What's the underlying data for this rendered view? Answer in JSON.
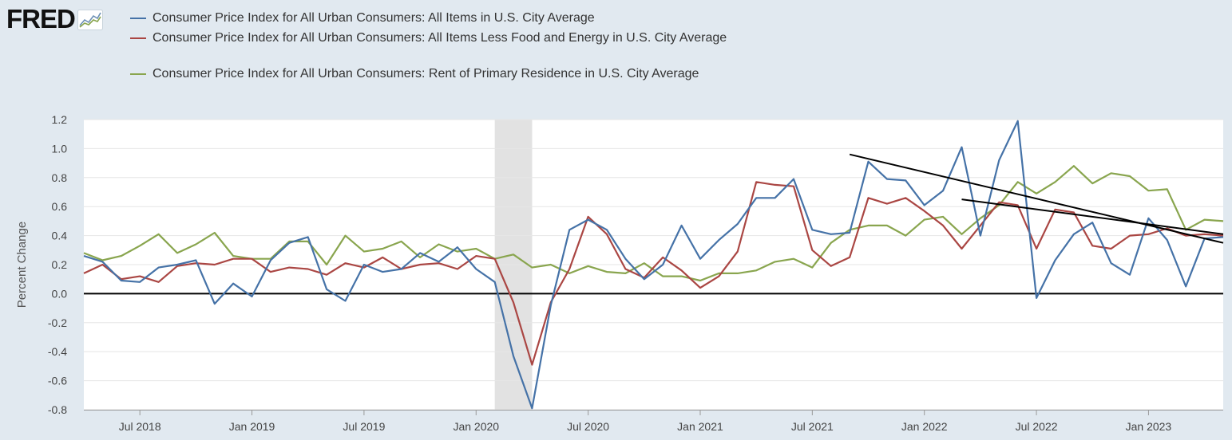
{
  "logo": {
    "text": "FRED",
    "icon": "fred-line-graph-icon"
  },
  "colors": {
    "cpi_all": "#4572a7",
    "core": "#aa4643",
    "rent": "#89a54e",
    "recession": "#e2e2e2",
    "trend": "#000000"
  },
  "chart_data": {
    "type": "line",
    "title": "",
    "ylabel": "Percent Change",
    "xlabel": "",
    "ylim": [
      -0.8,
      1.2
    ],
    "yticks": [
      1.2,
      1.0,
      0.8,
      0.6,
      0.4,
      0.2,
      0.0,
      -0.2,
      -0.4,
      -0.6,
      -0.8
    ],
    "ytick_labels": [
      "1.2",
      "1.0",
      "0.8",
      "0.6",
      "0.4",
      "0.2",
      "0.0",
      "-0.2",
      "-0.4",
      "-0.6",
      "-0.8"
    ],
    "x_start": "2018-04",
    "x_end": "2023-05",
    "xticks": [
      {
        "date": "2018-07",
        "label": "Jul 2018"
      },
      {
        "date": "2019-01",
        "label": "Jan 2019"
      },
      {
        "date": "2019-07",
        "label": "Jul 2019"
      },
      {
        "date": "2020-01",
        "label": "Jan 2020"
      },
      {
        "date": "2020-07",
        "label": "Jul 2020"
      },
      {
        "date": "2021-01",
        "label": "Jan 2021"
      },
      {
        "date": "2021-07",
        "label": "Jul 2021"
      },
      {
        "date": "2022-01",
        "label": "Jan 2022"
      },
      {
        "date": "2022-07",
        "label": "Jul 2022"
      },
      {
        "date": "2023-01",
        "label": "Jan 2023"
      }
    ],
    "recession": {
      "start": "2020-02",
      "end": "2020-04"
    },
    "grid": true,
    "legend_position": "top-left",
    "dates": [
      "2018-04",
      "2018-05",
      "2018-06",
      "2018-07",
      "2018-08",
      "2018-09",
      "2018-10",
      "2018-11",
      "2018-12",
      "2019-01",
      "2019-02",
      "2019-03",
      "2019-04",
      "2019-05",
      "2019-06",
      "2019-07",
      "2019-08",
      "2019-09",
      "2019-10",
      "2019-11",
      "2019-12",
      "2020-01",
      "2020-02",
      "2020-03",
      "2020-04",
      "2020-05",
      "2020-06",
      "2020-07",
      "2020-08",
      "2020-09",
      "2020-10",
      "2020-11",
      "2020-12",
      "2021-01",
      "2021-02",
      "2021-03",
      "2021-04",
      "2021-05",
      "2021-06",
      "2021-07",
      "2021-08",
      "2021-09",
      "2021-10",
      "2021-11",
      "2021-12",
      "2022-01",
      "2022-02",
      "2022-03",
      "2022-04",
      "2022-05",
      "2022-06",
      "2022-07",
      "2022-08",
      "2022-09",
      "2022-10",
      "2022-11",
      "2022-12",
      "2023-01",
      "2023-02",
      "2023-03",
      "2023-04",
      "2023-05"
    ],
    "series": [
      {
        "name": "Consumer Price Index for All Urban Consumers: All Items in U.S. City Average",
        "color_key": "cpi_all",
        "values": [
          0.26,
          0.22,
          0.09,
          0.08,
          0.18,
          0.2,
          0.23,
          -0.07,
          0.07,
          -0.02,
          0.23,
          0.35,
          0.39,
          0.03,
          -0.05,
          0.2,
          0.15,
          0.17,
          0.28,
          0.22,
          0.32,
          0.17,
          0.08,
          -0.43,
          -0.79,
          -0.08,
          0.44,
          0.51,
          0.44,
          0.24,
          0.1,
          0.2,
          0.47,
          0.24,
          0.37,
          0.48,
          0.66,
          0.66,
          0.79,
          0.44,
          0.41,
          0.42,
          0.91,
          0.79,
          0.78,
          0.61,
          0.71,
          1.01,
          0.4,
          0.92,
          1.19,
          -0.03,
          0.23,
          0.41,
          0.49,
          0.21,
          0.13,
          0.52,
          0.37,
          0.05,
          0.38,
          0.39
        ]
      },
      {
        "name": "Consumer Price Index for All Urban Consumers: All Items Less Food and Energy in U.S. City Average",
        "color_key": "core",
        "values": [
          0.14,
          0.2,
          0.1,
          0.12,
          0.08,
          0.19,
          0.21,
          0.2,
          0.24,
          0.24,
          0.15,
          0.18,
          0.17,
          0.13,
          0.21,
          0.18,
          0.25,
          0.17,
          0.2,
          0.21,
          0.17,
          0.26,
          0.24,
          -0.06,
          -0.49,
          -0.06,
          0.17,
          0.53,
          0.41,
          0.17,
          0.11,
          0.25,
          0.16,
          0.04,
          0.12,
          0.29,
          0.77,
          0.75,
          0.74,
          0.3,
          0.19,
          0.25,
          0.66,
          0.62,
          0.66,
          0.57,
          0.47,
          0.31,
          0.47,
          0.63,
          0.61,
          0.31,
          0.58,
          0.56,
          0.33,
          0.31,
          0.4,
          0.41,
          0.45,
          0.4,
          0.41,
          0.4
        ]
      },
      {
        "name": "Consumer Price Index for All Urban Consumers: Rent of Primary Residence in U.S. City Average",
        "color_key": "rent",
        "values": [
          0.28,
          0.23,
          0.26,
          0.33,
          0.41,
          0.28,
          0.34,
          0.42,
          0.26,
          0.24,
          0.24,
          0.36,
          0.36,
          0.2,
          0.4,
          0.29,
          0.31,
          0.36,
          0.25,
          0.34,
          0.29,
          0.31,
          0.24,
          0.27,
          0.18,
          0.2,
          0.14,
          0.19,
          0.15,
          0.14,
          0.21,
          0.12,
          0.12,
          0.09,
          0.14,
          0.14,
          0.16,
          0.22,
          0.24,
          0.18,
          0.35,
          0.44,
          0.47,
          0.47,
          0.4,
          0.51,
          0.53,
          0.41,
          0.52,
          0.61,
          0.77,
          0.69,
          0.77,
          0.88,
          0.76,
          0.83,
          0.81,
          0.71,
          0.72,
          0.44,
          0.51,
          0.5
        ]
      }
    ],
    "annotations": [
      {
        "type": "trend-line",
        "from": {
          "date": "2021-09",
          "value": 0.96
        },
        "to": {
          "date": "2023-05",
          "value": 0.35
        }
      },
      {
        "type": "trend-line",
        "from": {
          "date": "2022-03",
          "value": 0.65
        },
        "to": {
          "date": "2023-05",
          "value": 0.41
        }
      }
    ]
  }
}
